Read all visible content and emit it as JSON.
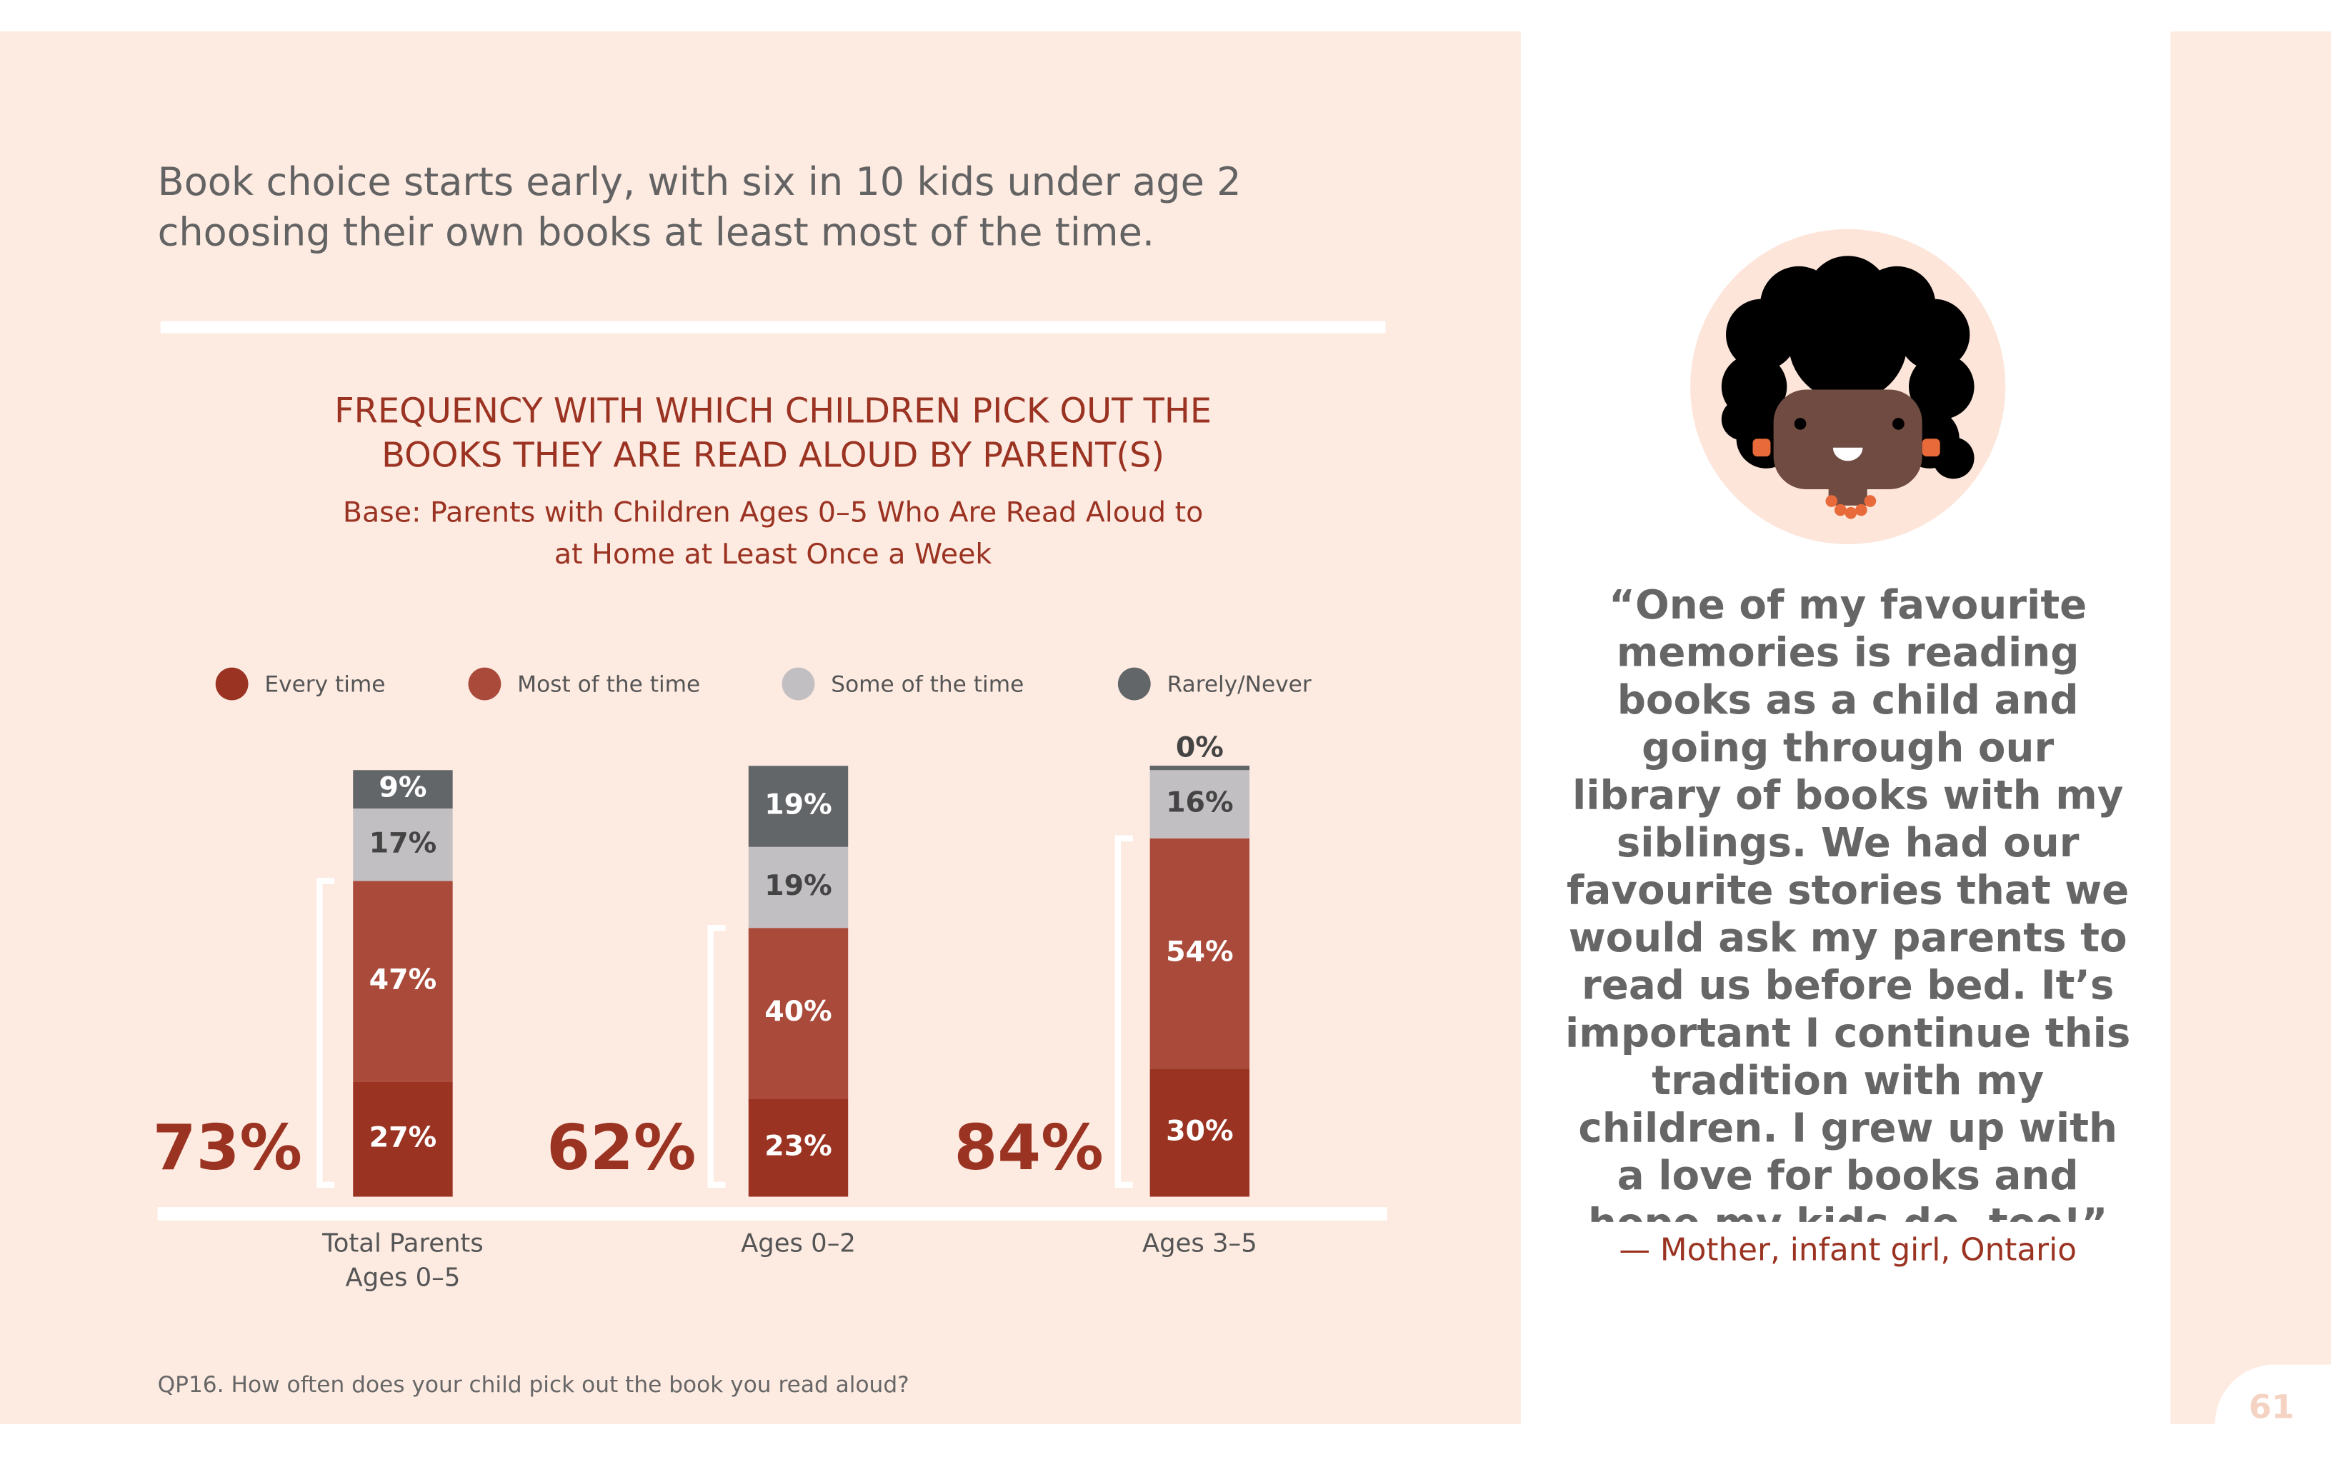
{
  "headline": "Book choice starts early, with six in 10 kids under age 2 choosing their own books at least most of the time.",
  "chart_data": {
    "type": "bar",
    "stacked": true,
    "title": "FREQUENCY WITH WHICH CHILDREN PICK OUT THE BOOKS THEY ARE READ ALOUD BY PARENT(S)",
    "subtitle": "Base: Parents with Children Ages 0–5 Who Are Read Aloud to at Home at Least Once a Week",
    "categories": [
      "Total Parents Ages 0–5",
      "Ages 0–2",
      "Ages 3–5"
    ],
    "series": [
      {
        "name": "Every time",
        "color": "#9b3322",
        "values": [
          27,
          23,
          30
        ],
        "value_labels": [
          "27%",
          "23%",
          "30%"
        ]
      },
      {
        "name": "Most of the time",
        "color": "#aa4a3a",
        "values": [
          47,
          40,
          54
        ],
        "value_labels": [
          "47%",
          "40%",
          "54%"
        ]
      },
      {
        "name": "Some of the time",
        "color": "#c2bfc3",
        "values": [
          17,
          19,
          16
        ],
        "value_labels": [
          "17%",
          "19%",
          "16%"
        ]
      },
      {
        "name": "Rarely/Never",
        "color": "#636669",
        "values": [
          9,
          19,
          0
        ],
        "value_labels": [
          "9%",
          "19%",
          "0%"
        ]
      }
    ],
    "totals": {
      "values": [
        73,
        62,
        84
      ],
      "value_labels": [
        "73%",
        "62%",
        "84%"
      ]
    }
  },
  "footnote": "QP16. How often does your child pick out the book you read aloud?",
  "quote": "“One of my favourite memories is reading books as a child and going through our library of books with my siblings. We had our favourite stories that we would ask my parents to read us before bed. It’s important I continue this tradition with my children. I grew up with a love for books and hope my kids do, too!”",
  "attribution": "— Mother, infant girl, Ontario",
  "page_number": "61"
}
